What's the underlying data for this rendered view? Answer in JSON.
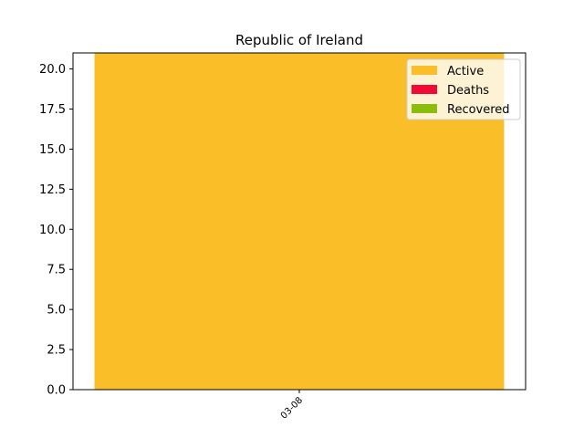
{
  "chart_data": {
    "type": "bar",
    "stacked": true,
    "title": "Republic of Ireland",
    "xlabel": "",
    "ylabel": "",
    "categories": [
      "03-08"
    ],
    "series": [
      {
        "name": "Active",
        "values": [
          21
        ],
        "color": "#f9be28"
      },
      {
        "name": "Deaths",
        "values": [
          0
        ],
        "color": "#f20a34"
      },
      {
        "name": "Recovered",
        "values": [
          0
        ],
        "color": "#8bbd0d"
      }
    ],
    "ylim": [
      0,
      21
    ],
    "yticks": [
      "0.0",
      "2.5",
      "5.0",
      "7.5",
      "10.0",
      "12.5",
      "15.0",
      "17.5",
      "20.0"
    ],
    "legend": "top-right",
    "grid": false
  }
}
